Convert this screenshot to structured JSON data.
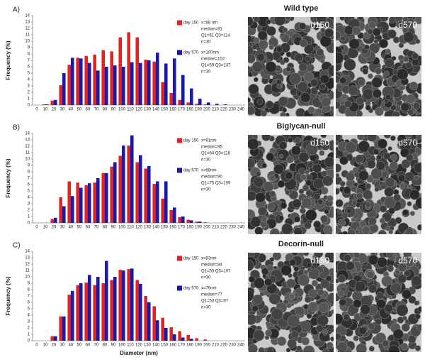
{
  "chart_data": [
    {
      "type": "bar",
      "panel_label": "A)",
      "title": "Wild type",
      "ylabel": "Frequency (%)",
      "categories": [
        "0",
        "10",
        "20",
        "30",
        "40",
        "50",
        "60",
        "70",
        "80",
        "90",
        "100",
        "110",
        "120",
        "130",
        "140",
        "150",
        "160",
        "170",
        "180",
        "190",
        "200",
        "210",
        "220",
        "230",
        "240"
      ],
      "series": [
        {
          "name": "day 150",
          "color": "#e8201e",
          "stats": [
            "x=88 nm",
            "median=91",
            "Q1=61 Q3=114",
            "n=30"
          ],
          "values": [
            0,
            0.1,
            0.7,
            3.1,
            6.3,
            7.4,
            7.7,
            7.9,
            8.6,
            8.4,
            10.6,
            11.4,
            10.6,
            7.1,
            6.8,
            3.6,
            1.9,
            0.8,
            0.4,
            0.2,
            0.1,
            0,
            0,
            0,
            0
          ]
        },
        {
          "name": "day 570",
          "color": "#1a1aa6",
          "stats": [
            "x=100nm",
            "median=102",
            "Q1=59 Q3=137",
            "n=30"
          ],
          "values": [
            0,
            0.1,
            0.8,
            5.0,
            7.4,
            7.3,
            6.6,
            5.4,
            6.0,
            6.2,
            6.0,
            6.7,
            6.6,
            7.0,
            8.2,
            6.5,
            7.3,
            4.7,
            2.6,
            1.0,
            0.4,
            0.2,
            0.1,
            0,
            0
          ]
        }
      ],
      "ylim": [
        0,
        14
      ],
      "yticks": [
        0,
        1,
        2,
        3,
        4,
        5,
        6,
        7,
        8,
        9,
        10,
        11,
        12,
        13,
        14
      ],
      "image_labels": [
        "d150",
        "d570"
      ]
    },
    {
      "type": "bar",
      "panel_label": "B)",
      "title": "Biglycan-null",
      "ylabel": "Frequency (%)",
      "categories": [
        "0",
        "10",
        "20",
        "30",
        "40",
        "50",
        "60",
        "70",
        "80",
        "90",
        "100",
        "110",
        "120",
        "130",
        "140",
        "150",
        "160",
        "170",
        "180",
        "190",
        "200",
        "210",
        "220",
        "230",
        "240"
      ],
      "series": [
        {
          "name": "day 150",
          "color": "#e8201e",
          "stats": [
            "x=91nm",
            "median=95",
            "Q1=64 Q3=118",
            "n=30"
          ],
          "values": [
            0,
            0,
            0.6,
            4.0,
            6.5,
            6.3,
            5.9,
            6.3,
            7.8,
            8.8,
            10.5,
            12.1,
            9.5,
            8.5,
            6.1,
            3.8,
            2.0,
            0.9,
            0.5,
            0.2,
            0.1,
            0,
            0,
            0,
            0
          ]
        },
        {
          "name": "day 570",
          "color": "#1a1aa6",
          "stats": [
            "x=88nm",
            "median=90",
            "Q1=75 Q3=109",
            "n=30"
          ],
          "values": [
            0,
            0,
            0.8,
            2.6,
            4.2,
            5.5,
            6.2,
            7.0,
            7.8,
            9.5,
            12.1,
            13.7,
            10.6,
            8.9,
            6.5,
            6.5,
            2.4,
            1.0,
            0.4,
            0.2,
            0,
            0,
            0,
            0,
            0
          ]
        }
      ],
      "ylim": [
        0,
        14
      ],
      "yticks": [
        0,
        1,
        2,
        3,
        4,
        5,
        6,
        7,
        8,
        9,
        10,
        11,
        12,
        13,
        14
      ],
      "image_labels": [
        "d150",
        "d570"
      ]
    },
    {
      "type": "bar",
      "panel_label": "C)",
      "title": "Decorin-null",
      "ylabel": "Frequency (%)",
      "xlabel": "Diameter (nm)",
      "categories": [
        "0",
        "10",
        "20",
        "30",
        "40",
        "50",
        "60",
        "70",
        "80",
        "90",
        "100",
        "110",
        "120",
        "130",
        "140",
        "150",
        "160",
        "170",
        "180",
        "190",
        "200",
        "210",
        "220",
        "230",
        "240"
      ],
      "series": [
        {
          "name": "day 150",
          "color": "#e8201e",
          "stats": [
            "x=82nm",
            "median=84",
            "Q1=55 Q3=107",
            "n=30"
          ],
          "values": [
            0,
            0,
            0.7,
            3.8,
            7.2,
            8.7,
            9.1,
            8.7,
            9.0,
            9.5,
            11.1,
            11.2,
            9.5,
            7.0,
            5.4,
            3.6,
            2.1,
            1.5,
            0.9,
            0.4,
            0.2,
            0,
            0,
            0,
            0
          ]
        },
        {
          "name": "day 570",
          "color": "#1a1aa6",
          "stats": [
            "x=76nm",
            "median=77",
            "Q1=53 Q3=97",
            "n=30"
          ],
          "values": [
            0,
            0,
            0.7,
            3.8,
            7.8,
            9.0,
            10.3,
            10.0,
            12.5,
            10.0,
            11.0,
            11.3,
            8.9,
            6.0,
            3.2,
            2.0,
            1.0,
            0.5,
            0.3,
            0,
            0,
            0,
            0,
            0,
            0
          ]
        }
      ],
      "ylim": [
        0,
        14
      ],
      "yticks": [
        0,
        1,
        2,
        3,
        4,
        5,
        6,
        7,
        8,
        9,
        10,
        11,
        12,
        13,
        14
      ],
      "image_labels": [
        "d150",
        "d570"
      ]
    }
  ]
}
